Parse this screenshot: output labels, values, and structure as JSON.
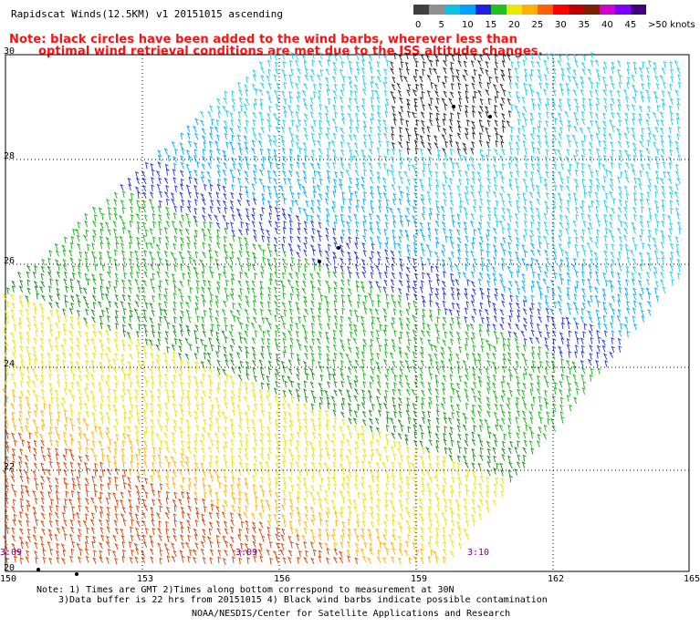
{
  "title": "Rapidscat Winds(12.5KM) v1 20151015 ascending",
  "note_line1": "Note: black circles have been added to the wind barbs, wherever less than",
  "note_line2": "optimal wind retrieval conditions are met due to the ISS altitude changes.",
  "colorbar": {
    "labels": [
      "0",
      "5",
      "10",
      "15",
      "20",
      "25",
      "30",
      "35",
      "40",
      "45",
      ">50 knots"
    ],
    "colors": [
      "#404040",
      "#909090",
      "#10c0e0",
      "#00a0ff",
      "#2020e0",
      "#20c020",
      "#e8e800",
      "#ffb000",
      "#ff6000",
      "#ff0000",
      "#c00000",
      "#802000",
      "#d000d0",
      "#8000ff",
      "#400080"
    ]
  },
  "map": {
    "lon_ticks": [
      "150",
      "153",
      "156",
      "159",
      "162",
      "165"
    ],
    "lat_ticks": [
      "30",
      "28",
      "26",
      "24",
      "22",
      "20"
    ],
    "time_labels": [
      "3:09",
      "3:09",
      "3:10"
    ]
  },
  "footer": {
    "line1": "Note: 1) Times are GMT 2)Times along bottom correspond to measurement at 30N",
    "line2": "3)Data buffer is 22 hrs from 20151015 4) Black wind barbs indicate possible contamination",
    "credit": "NOAA/NESDIS/Center for Satellite Applications and Research"
  }
}
